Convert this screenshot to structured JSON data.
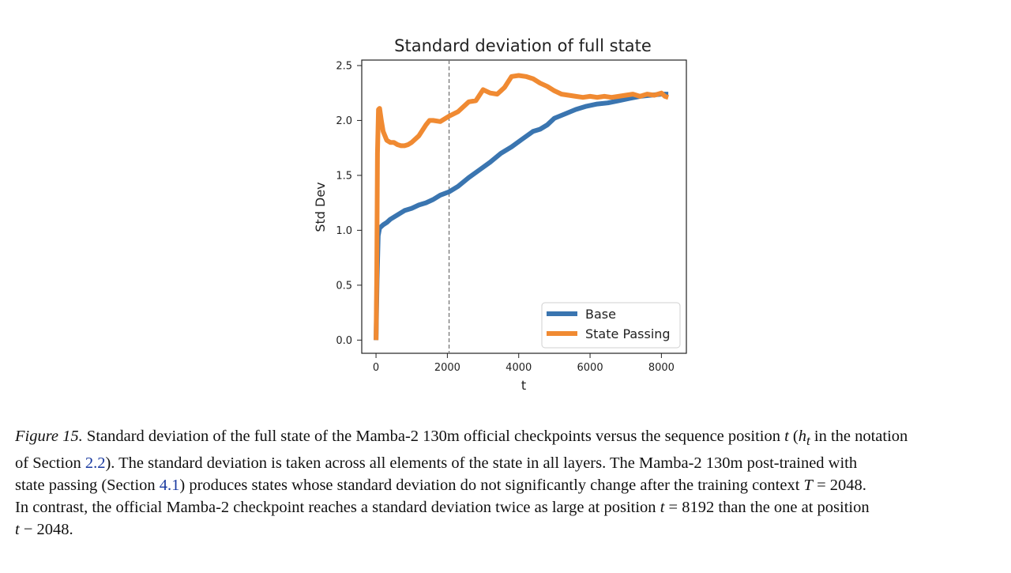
{
  "chart_data": {
    "type": "line",
    "title": "Standard deviation of full state",
    "xlabel": "t",
    "ylabel": "Std Dev",
    "xlim": [
      -400,
      8700
    ],
    "ylim": [
      -0.12,
      2.55
    ],
    "xticks": [
      0,
      2000,
      4000,
      6000,
      8000
    ],
    "xtick_labels": [
      "0",
      "2000",
      "4000",
      "6000",
      "8000"
    ],
    "yticks": [
      0.0,
      0.5,
      1.0,
      1.5,
      2.0,
      2.5
    ],
    "ytick_labels": [
      "0.0",
      "0.5",
      "1.0",
      "1.5",
      "2.0",
      "2.5"
    ],
    "vline": {
      "x": 2048,
      "style": "dashed"
    },
    "legend_position": "lower-right",
    "series": [
      {
        "name": "Base",
        "color": "#3a75b0",
        "x": [
          0,
          30,
          60,
          100,
          200,
          300,
          400,
          600,
          800,
          1000,
          1200,
          1400,
          1600,
          1800,
          2048,
          2300,
          2600,
          2900,
          3200,
          3500,
          3800,
          4100,
          4400,
          4600,
          4800,
          5000,
          5300,
          5600,
          5900,
          6200,
          6500,
          6800,
          7100,
          7400,
          7700,
          8000,
          8192
        ],
        "y": [
          0.0,
          0.55,
          0.95,
          1.02,
          1.05,
          1.07,
          1.1,
          1.14,
          1.18,
          1.2,
          1.23,
          1.25,
          1.28,
          1.32,
          1.35,
          1.4,
          1.48,
          1.55,
          1.62,
          1.7,
          1.76,
          1.83,
          1.9,
          1.92,
          1.96,
          2.02,
          2.06,
          2.1,
          2.13,
          2.15,
          2.16,
          2.18,
          2.2,
          2.22,
          2.23,
          2.24,
          2.24
        ]
      },
      {
        "name": "State Passing",
        "color": "#f08a32",
        "x": [
          0,
          20,
          40,
          70,
          100,
          150,
          200,
          300,
          400,
          500,
          600,
          700,
          800,
          900,
          1000,
          1200,
          1400,
          1500,
          1600,
          1800,
          2048,
          2300,
          2600,
          2800,
          3000,
          3200,
          3400,
          3600,
          3800,
          4000,
          4200,
          4400,
          4600,
          4800,
          5000,
          5200,
          5400,
          5600,
          5800,
          6000,
          6200,
          6400,
          6600,
          6800,
          7000,
          7200,
          7400,
          7600,
          7800,
          8000,
          8100,
          8192
        ],
        "y": [
          0.0,
          0.6,
          1.7,
          2.1,
          2.11,
          2.0,
          1.9,
          1.82,
          1.8,
          1.8,
          1.78,
          1.77,
          1.77,
          1.78,
          1.8,
          1.86,
          1.96,
          2.0,
          2.0,
          1.99,
          2.04,
          2.08,
          2.17,
          2.18,
          2.28,
          2.25,
          2.24,
          2.3,
          2.4,
          2.41,
          2.4,
          2.38,
          2.34,
          2.31,
          2.27,
          2.24,
          2.23,
          2.22,
          2.21,
          2.22,
          2.21,
          2.22,
          2.21,
          2.22,
          2.23,
          2.24,
          2.22,
          2.24,
          2.23,
          2.25,
          2.22,
          2.21
        ]
      }
    ]
  },
  "caption": {
    "figure_label": "Figure 15.",
    "line1_a": "Standard deviation of the full state of the Mamba-2 130m official checkpoints versus the sequence position ",
    "sym_t": "t",
    "line1_b": " (",
    "sym_ht": "h",
    "sym_sub_t": "t",
    "line1_c": " in the notation",
    "line2_a": "of Section ",
    "ref_section": "2.2",
    "line2_b": ").  The standard deviation is taken across all elements of the state in all layers.  The Mamba-2 130m post-trained with",
    "line3_a": "state passing (Section ",
    "ref_section2": "4.1",
    "line3_b": ") produces states whose standard deviation do not significantly change after the training context ",
    "sym_T": "T",
    "eq1": " = 2048.",
    "line4_a": "In contrast, the official Mamba-2 checkpoint reaches a standard deviation twice as large at position ",
    "sym_t2": "t",
    "eq2": " = 8192 than the one at position",
    "sym_t3": "t",
    "line5": " − 2048."
  }
}
